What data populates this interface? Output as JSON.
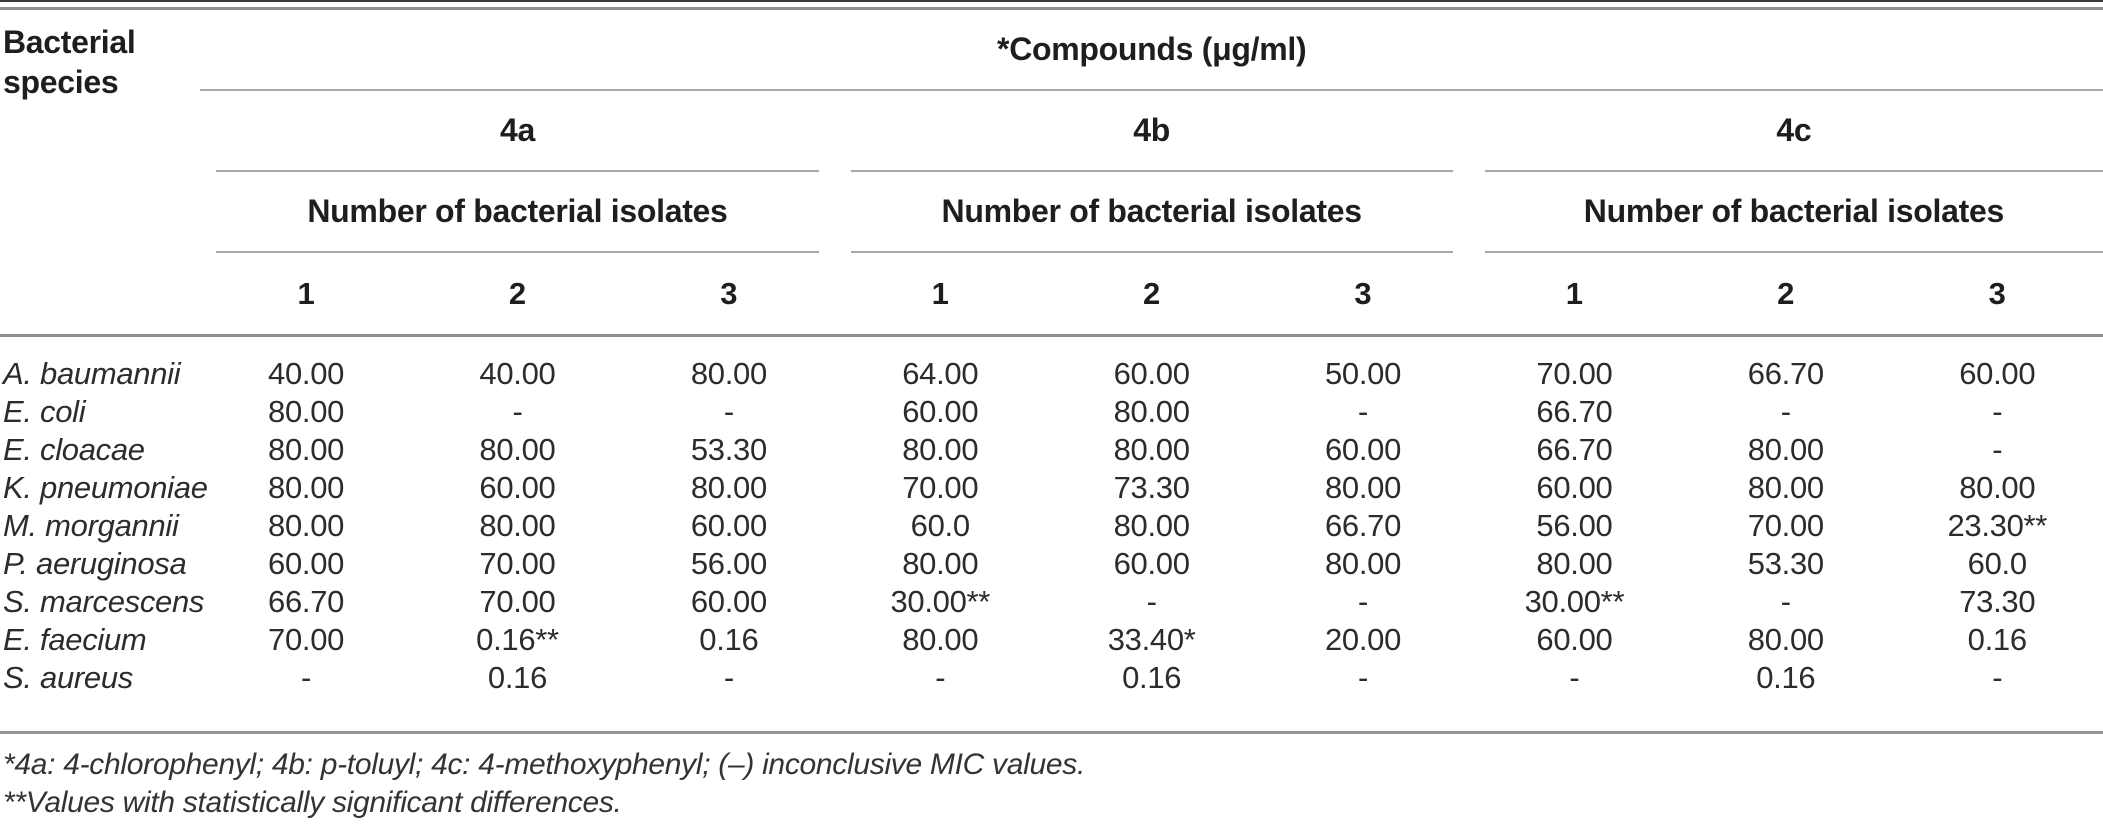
{
  "table": {
    "species_header": "Bacterial species",
    "compounds_header": "*Compounds (μg/ml)",
    "groups": [
      {
        "label": "4a",
        "subheader": "Number of bacterial isolates",
        "cols": [
          "1",
          "2",
          "3"
        ]
      },
      {
        "label": "4b",
        "subheader": "Number of bacterial isolates",
        "cols": [
          "1",
          "2",
          "3"
        ]
      },
      {
        "label": "4c",
        "subheader": "Number of bacterial isolates",
        "cols": [
          "1",
          "2",
          "3"
        ]
      }
    ],
    "rows": [
      {
        "species": "A. baumannii",
        "values": [
          "40.00",
          "40.00",
          "80.00",
          "64.00",
          "60.00",
          "50.00",
          "70.00",
          "66.70",
          "60.00"
        ]
      },
      {
        "species": "E. coli",
        "values": [
          "80.00",
          "-",
          "-",
          "60.00",
          "80.00",
          "-",
          "66.70",
          "-",
          "-"
        ]
      },
      {
        "species": "E. cloacae",
        "values": [
          "80.00",
          "80.00",
          "53.30",
          "80.00",
          "80.00",
          "60.00",
          "66.70",
          "80.00",
          "-"
        ]
      },
      {
        "species": "K. pneumoniae",
        "values": [
          "80.00",
          "60.00",
          "80.00",
          "70.00",
          "73.30",
          "80.00",
          "60.00",
          "80.00",
          "80.00"
        ]
      },
      {
        "species": "M. morgannii",
        "values": [
          "80.00",
          "80.00",
          "60.00",
          "60.0",
          "80.00",
          "66.70",
          "56.00",
          "70.00",
          "23.30**"
        ]
      },
      {
        "species": "P. aeruginosa",
        "values": [
          "60.00",
          "70.00",
          "56.00",
          "80.00",
          "60.00",
          "80.00",
          "80.00",
          "53.30",
          "60.0"
        ]
      },
      {
        "species": "S. marcescens",
        "values": [
          "66.70",
          "70.00",
          "60.00",
          "30.00**",
          "-",
          "-",
          "30.00**",
          "-",
          "73.30"
        ]
      },
      {
        "species": "E. faecium",
        "values": [
          "70.00",
          "0.16**",
          "0.16",
          "80.00",
          "33.40*",
          "20.00",
          "60.00",
          "80.00",
          "0.16"
        ]
      },
      {
        "species": "S. aureus",
        "values": [
          "-",
          "0.16",
          "-",
          "-",
          "0.16",
          "-",
          "-",
          "0.16",
          "-"
        ]
      }
    ],
    "footnotes": [
      "*4a: 4-chlorophenyl; 4b: p-toluyl; 4c: 4-methoxyphenyl; (–) inconclusive MIC values.",
      "**Values with statistically significant differences."
    ]
  }
}
